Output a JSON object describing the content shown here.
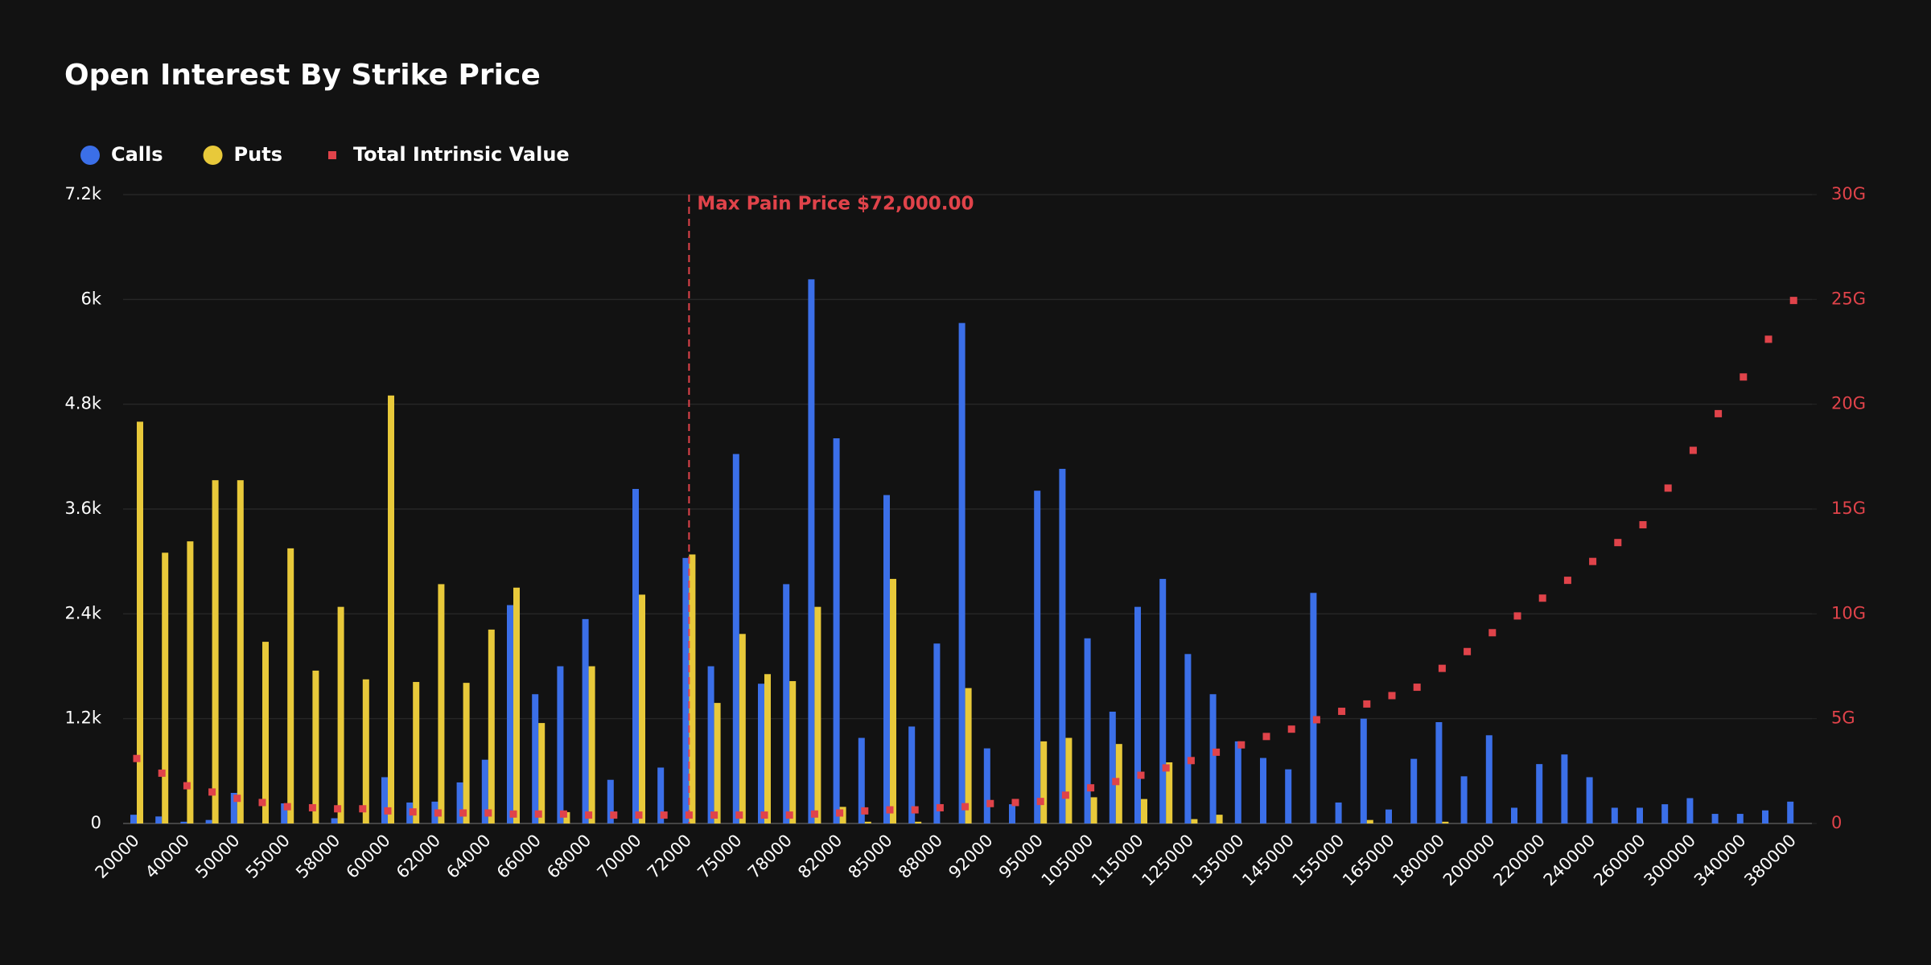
{
  "chart_data": {
    "type": "bar",
    "title": "Open Interest By Strike Price",
    "categories": [
      "20000",
      null,
      "40000",
      null,
      "50000",
      null,
      "55000",
      null,
      "58000",
      null,
      "60000",
      null,
      "62000",
      null,
      "64000",
      null,
      "66000",
      null,
      "68000",
      null,
      "70000",
      null,
      "72000",
      null,
      "75000",
      null,
      "78000",
      null,
      "82000",
      null,
      "85000",
      null,
      "88000",
      null,
      "92000",
      null,
      "95000",
      null,
      "105000",
      null,
      "115000",
      null,
      "125000",
      null,
      "135000",
      null,
      "145000",
      null,
      "155000",
      null,
      "165000",
      null,
      "180000",
      null,
      "200000",
      null,
      "220000",
      null,
      "240000",
      null,
      "260000",
      null,
      "300000",
      null,
      "340000",
      null,
      "380000"
    ],
    "series": [
      {
        "name": "Calls",
        "type": "bar",
        "color": "#3b6fe8",
        "values": [
          100,
          80,
          20,
          40,
          350,
          0,
          230,
          0,
          60,
          0,
          530,
          240,
          250,
          470,
          730,
          2500,
          1480,
          1800,
          2340,
          500,
          3830,
          640,
          3040,
          1800,
          4230,
          1600,
          2740,
          6230,
          4410,
          980,
          3760,
          1110,
          2060,
          5730,
          860,
          220,
          3810,
          4060,
          2120,
          1280,
          2480,
          2800,
          1940,
          1480,
          940,
          750,
          620,
          2640,
          240,
          1200,
          160,
          740,
          1160,
          540,
          1010,
          180,
          680,
          790,
          530,
          180,
          180,
          220,
          290,
          110,
          110,
          150,
          250
        ]
      },
      {
        "name": "Puts",
        "type": "bar",
        "color": "#e8c93a",
        "values": [
          4600,
          3100,
          3230,
          3930,
          3930,
          2080,
          3150,
          1750,
          2480,
          1650,
          4900,
          1620,
          2740,
          1610,
          2220,
          2700,
          1150,
          130,
          1800,
          0,
          2620,
          0,
          3080,
          1380,
          2170,
          1710,
          1630,
          2480,
          190,
          20,
          2800,
          20,
          0,
          1550,
          0,
          0,
          940,
          980,
          300,
          910,
          280,
          700,
          50,
          100,
          0,
          0,
          0,
          0,
          0,
          40,
          0,
          0,
          20,
          0,
          0,
          0,
          0,
          0,
          0,
          0,
          0,
          0,
          0,
          0,
          0,
          0,
          0
        ]
      },
      {
        "name": "Total Intrinsic Value",
        "type": "scatter",
        "axis": "y2",
        "color": "#e0434a",
        "values": [
          3.1,
          2.4,
          1.8,
          1.5,
          1.2,
          1.0,
          0.8,
          0.75,
          0.7,
          0.7,
          0.6,
          0.55,
          0.5,
          0.5,
          0.5,
          0.45,
          0.45,
          0.45,
          0.4,
          0.4,
          0.4,
          0.4,
          0.4,
          0.4,
          0.4,
          0.4,
          0.4,
          0.45,
          0.5,
          0.6,
          0.65,
          0.65,
          0.75,
          0.8,
          0.95,
          1.0,
          1.05,
          1.35,
          1.7,
          2.0,
          2.3,
          2.65,
          3.0,
          3.4,
          3.75,
          4.15,
          4.5,
          4.95,
          5.35,
          5.7,
          6.1,
          6.5,
          7.4,
          8.2,
          9.1,
          9.9,
          10.75,
          11.6,
          12.5,
          13.4,
          14.25,
          16.0,
          17.8,
          19.55,
          21.3,
          23.1,
          24.95
        ]
      }
    ],
    "ylim": [
      0,
      7200
    ],
    "yticks": [
      0,
      {
        "value": 1200,
        "label": "1.2k"
      },
      {
        "value": 2400,
        "label": "2.4k"
      },
      {
        "value": 3600,
        "label": "3.6k"
      },
      {
        "value": 4800,
        "label": "4.8k"
      },
      {
        "value": 6000,
        "label": "6k"
      },
      {
        "value": 7200,
        "label": "7.2k"
      }
    ],
    "y2lim": [
      0,
      30
    ],
    "y2ticks": [
      0,
      {
        "value": 5,
        "label": "5G"
      },
      {
        "value": 10,
        "label": "10G"
      },
      {
        "value": 15,
        "label": "15G"
      },
      {
        "value": 20,
        "label": "20G"
      },
      {
        "value": 25,
        "label": "25G"
      },
      {
        "value": 30,
        "label": "30G"
      }
    ],
    "grid": true,
    "legend": "top-left",
    "annotation": {
      "label": "Max Pain Price $72,000.00",
      "category": "72000",
      "color": "#e0434a"
    }
  }
}
